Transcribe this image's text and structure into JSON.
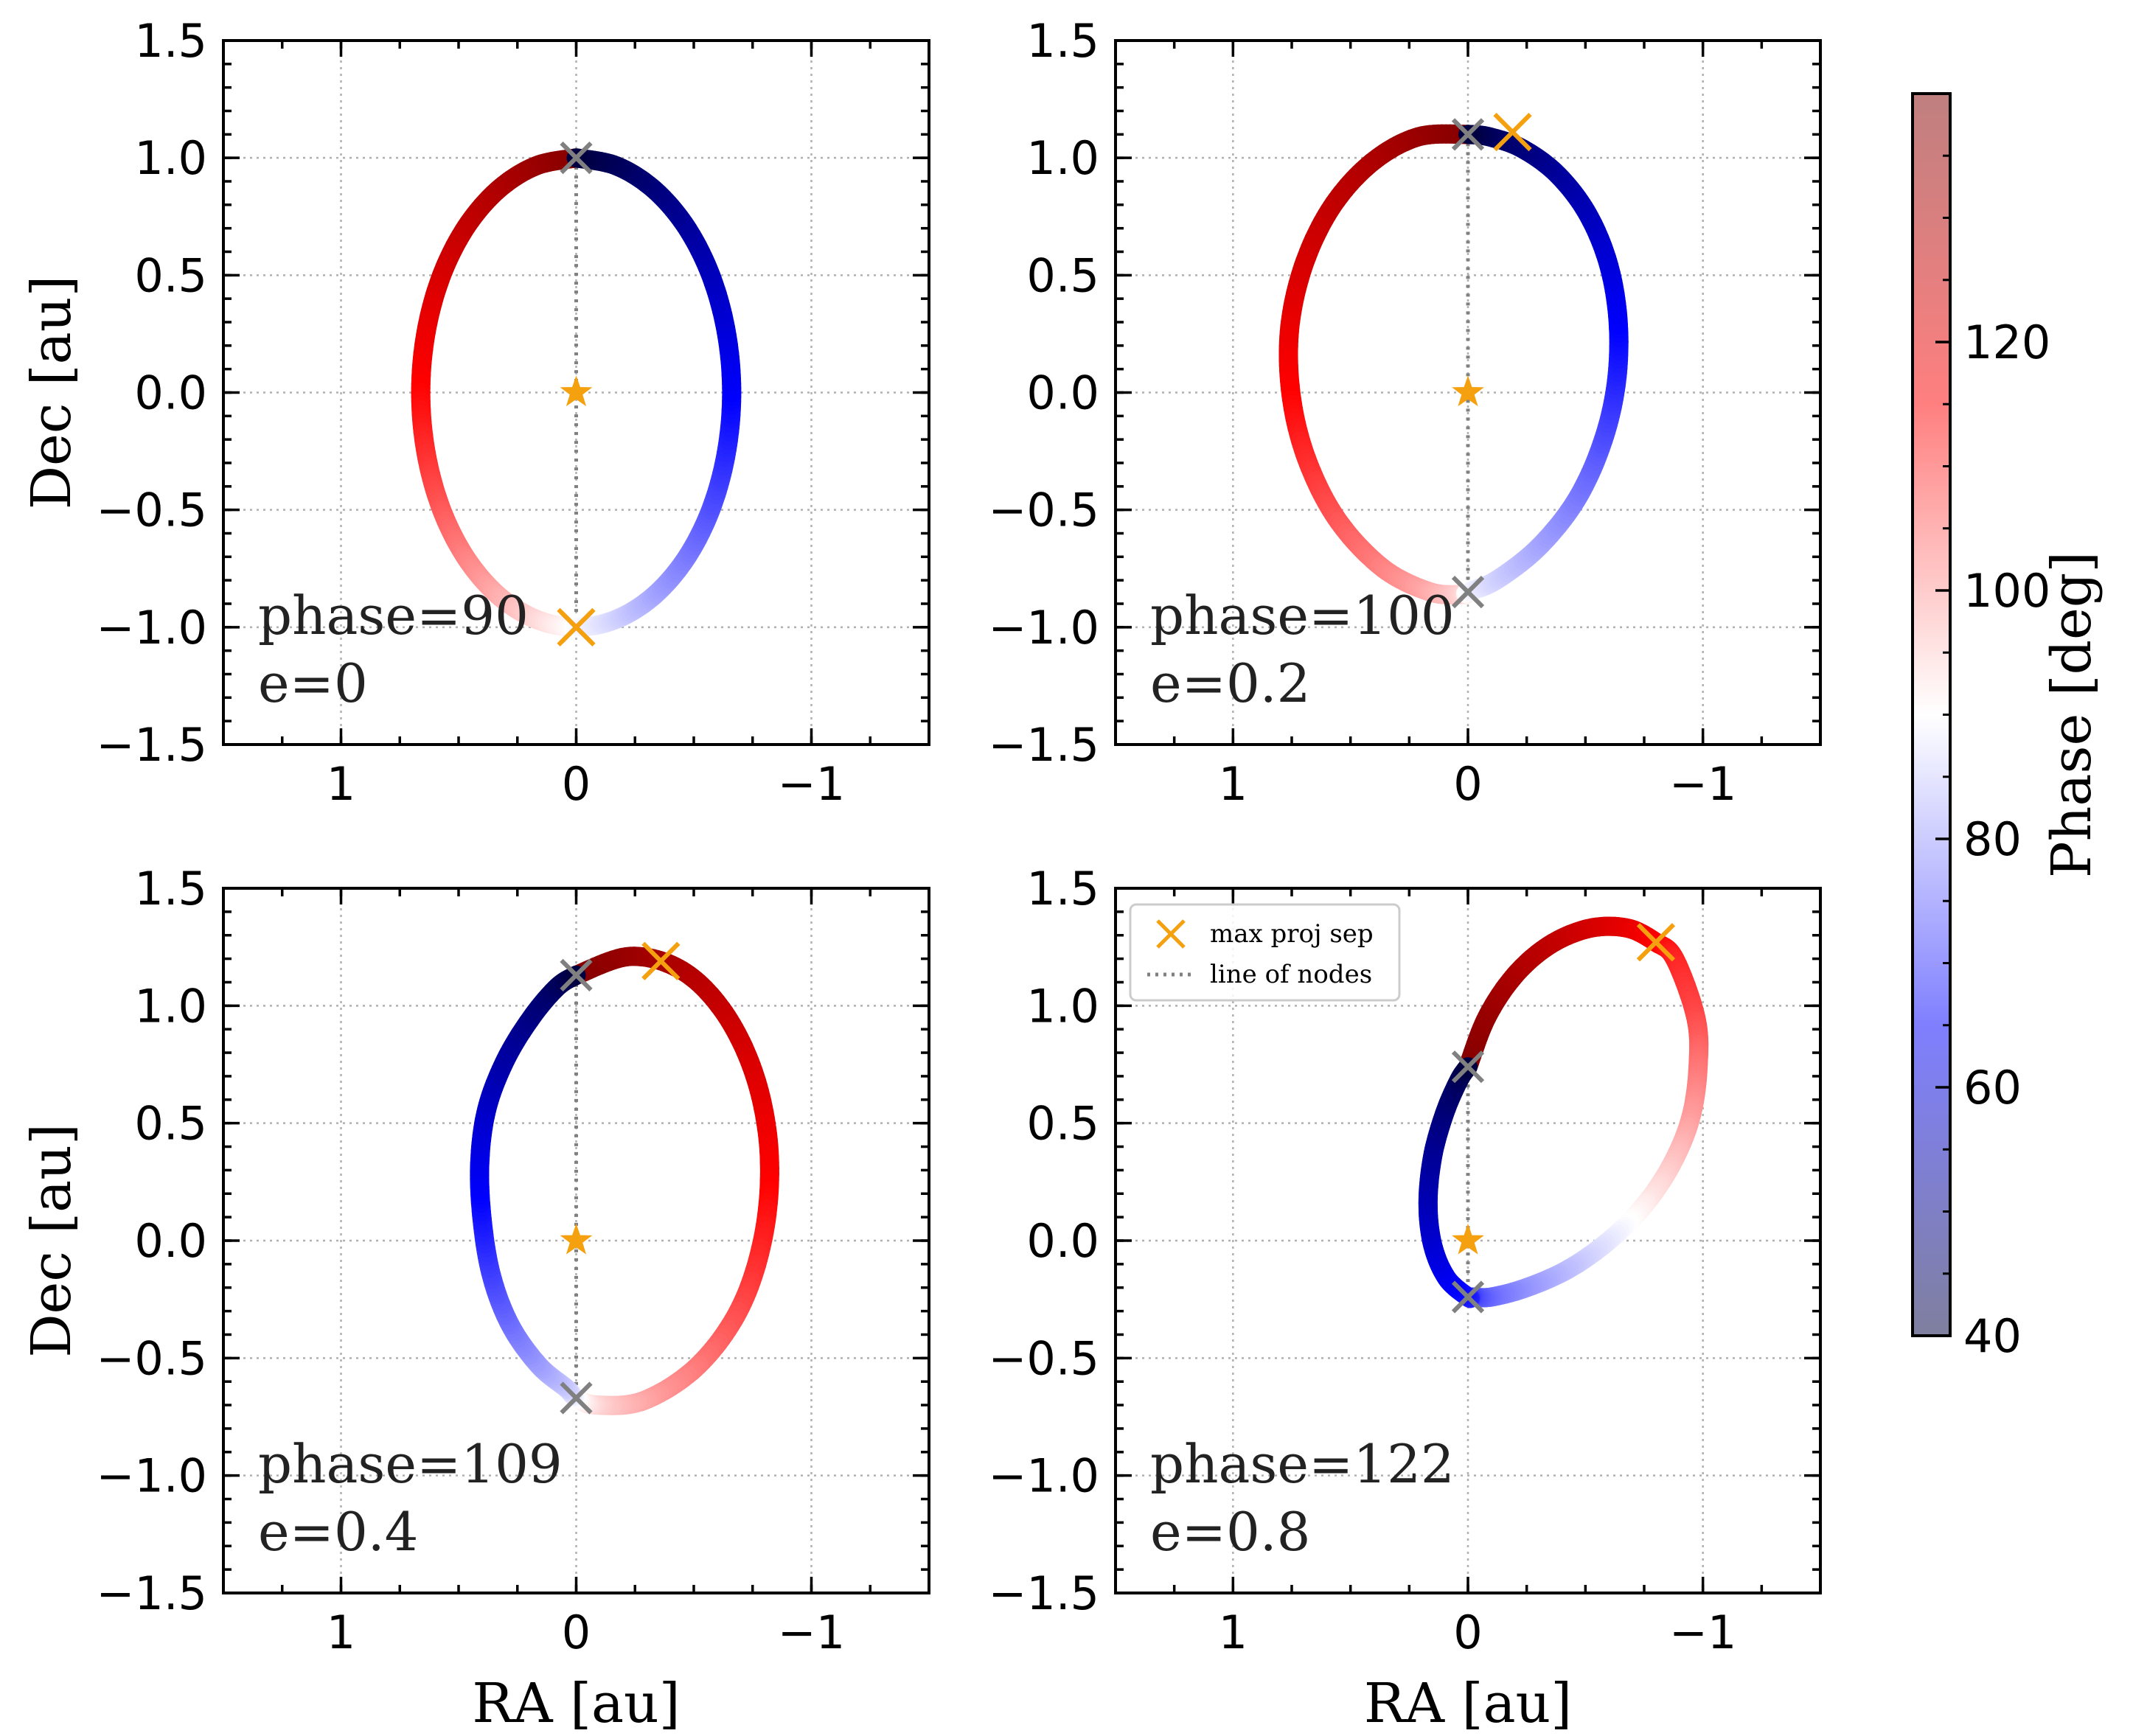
{
  "chart_data": [
    {
      "type": "line",
      "panel": "top-left",
      "annotation": [
        "phase=90",
        "e=0"
      ],
      "e": 0,
      "phase": 90,
      "xlabel": "",
      "ylabel": "Dec [au]",
      "xlim": [
        1.5,
        -1.5
      ],
      "ylim": [
        -1.5,
        1.5
      ],
      "xticks": [
        1,
        0,
        -1
      ],
      "xtick_labels": [
        "1",
        "0",
        "−1"
      ],
      "yticks": [
        -1.5,
        -1.0,
        -0.5,
        0.0,
        0.5,
        1.0,
        1.5
      ],
      "ytick_labels": [
        "−1.5",
        "−1.0",
        "−0.5",
        "0.0",
        "0.5",
        "1.0",
        "1.5"
      ],
      "grid": true,
      "orbit_curve": {
        "x": [
          0.0,
          0.171,
          0.33,
          0.467,
          0.572,
          0.638,
          0.661,
          0.638,
          0.572,
          0.467,
          0.33,
          0.171,
          0.0,
          -0.171,
          -0.33,
          -0.467,
          -0.572,
          -0.638,
          -0.661,
          -0.638,
          -0.572,
          -0.467,
          -0.33,
          -0.171,
          0.0
        ],
        "y": [
          1.0,
          0.966,
          0.866,
          0.707,
          0.5,
          0.259,
          0.0,
          -0.259,
          -0.5,
          -0.707,
          -0.866,
          -0.966,
          -1.0,
          -0.966,
          -0.866,
          -0.707,
          -0.5,
          -0.259,
          0.0,
          0.259,
          0.5,
          0.707,
          0.866,
          0.966,
          1.0
        ]
      },
      "ascending_node": {
        "x": 0.0,
        "y": 1.0
      },
      "descending_node": {
        "x": 0.0,
        "y": -1.0
      },
      "max_proj_sep": {
        "x": 0.0,
        "y": -1.0
      },
      "star": {
        "x": 0.0,
        "y": 0.0
      },
      "line_of_nodes": {
        "x": [
          0.0,
          0.0
        ],
        "y": [
          1.0,
          -1.0
        ]
      }
    },
    {
      "type": "line",
      "panel": "top-right",
      "annotation": [
        "phase=100",
        "e=0.2"
      ],
      "e": 0.2,
      "phase": 100,
      "xlabel": "",
      "ylabel": "",
      "xlim": [
        1.5,
        -1.5
      ],
      "ylim": [
        -1.5,
        1.5
      ],
      "xticks": [
        1,
        0,
        -1
      ],
      "xtick_labels": [
        "1",
        "0",
        "−1"
      ],
      "yticks": [
        -1.5,
        -1.0,
        -0.5,
        0.0,
        0.5,
        1.0,
        1.5
      ],
      "ytick_labels": [
        "−1.5",
        "−1.0",
        "−0.5",
        "0.0",
        "0.5",
        "1.0",
        "1.5"
      ],
      "grid": true,
      "orbit_curve": {
        "x": [
          0.0,
          0.211,
          0.41,
          0.58,
          0.7,
          0.76,
          0.75,
          0.68,
          0.55,
          0.36,
          0.16,
          0.02,
          0.0,
          -0.12,
          -0.3,
          -0.46,
          -0.57,
          -0.63,
          -0.64,
          -0.6,
          -0.51,
          -0.38,
          -0.23,
          -0.09,
          0.0
        ],
        "y": [
          1.1,
          1.09,
          0.98,
          0.79,
          0.54,
          0.26,
          -0.03,
          -0.3,
          -0.55,
          -0.75,
          -0.85,
          -0.86,
          -0.85,
          -0.8,
          -0.66,
          -0.46,
          -0.22,
          0.03,
          0.29,
          0.54,
          0.76,
          0.93,
          1.04,
          1.09,
          1.1
        ]
      },
      "ascending_node": {
        "x": 0.0,
        "y": 1.1
      },
      "descending_node": {
        "x": 0.0,
        "y": -0.85
      },
      "max_proj_sep": {
        "x": -0.19,
        "y": 1.11
      },
      "star": {
        "x": 0.0,
        "y": 0.0
      },
      "line_of_nodes": {
        "x": [
          0.0,
          0.0
        ],
        "y": [
          1.1,
          -0.85
        ]
      }
    },
    {
      "type": "line",
      "panel": "bottom-left",
      "annotation": [
        "phase=109",
        "e=0.4"
      ],
      "e": 0.4,
      "phase": 109,
      "xlabel": "RA [au]",
      "ylabel": "Dec [au]",
      "xlim": [
        1.5,
        -1.5
      ],
      "ylim": [
        -1.5,
        1.5
      ],
      "xticks": [
        1,
        0,
        -1
      ],
      "xtick_labels": [
        "1",
        "0",
        "−1"
      ],
      "yticks": [
        -1.5,
        -1.0,
        -0.5,
        0.0,
        0.5,
        1.0,
        1.5
      ],
      "ytick_labels": [
        "−1.5",
        "−1.0",
        "−0.5",
        "0.0",
        "0.5",
        "1.0",
        "1.5"
      ],
      "grid": true,
      "orbit_curve": {
        "x": [
          0.0,
          -0.23,
          -0.45,
          -0.63,
          -0.76,
          -0.82,
          -0.8,
          -0.7,
          -0.52,
          -0.29,
          -0.09,
          0.0,
          0.04,
          0.16,
          0.28,
          0.36,
          0.4,
          0.41,
          0.38,
          0.3,
          0.19,
          0.08,
          0.0
        ],
        "y": [
          1.13,
          1.21,
          1.15,
          0.97,
          0.7,
          0.38,
          0.04,
          -0.28,
          -0.53,
          -0.68,
          -0.7,
          -0.67,
          -0.63,
          -0.53,
          -0.36,
          -0.15,
          0.09,
          0.33,
          0.56,
          0.77,
          0.95,
          1.08,
          1.13
        ]
      },
      "ascending_node": {
        "x": 0.0,
        "y": 1.13
      },
      "descending_node": {
        "x": 0.0,
        "y": -0.67
      },
      "max_proj_sep": {
        "x": -0.36,
        "y": 1.19
      },
      "star": {
        "x": 0.0,
        "y": 0.0
      },
      "line_of_nodes": {
        "x": [
          0.0,
          0.0
        ],
        "y": [
          1.13,
          -0.67
        ]
      }
    },
    {
      "type": "line",
      "panel": "bottom-right",
      "annotation": [
        "phase=122",
        "e=0.8"
      ],
      "e": 0.8,
      "phase": 122,
      "xlabel": "RA [au]",
      "ylabel": "",
      "xlim": [
        1.5,
        -1.5
      ],
      "ylim": [
        -1.5,
        1.5
      ],
      "xticks": [
        1,
        0,
        -1
      ],
      "xtick_labels": [
        "1",
        "0",
        "−1"
      ],
      "yticks": [
        -1.5,
        -1.0,
        -0.5,
        0.0,
        0.5,
        1.0,
        1.5
      ],
      "ytick_labels": [
        "−1.5",
        "−1.0",
        "−0.5",
        "0.0",
        "0.5",
        "1.0",
        "1.5"
      ],
      "grid": true,
      "orbit_curve": {
        "x": [
          0.0,
          -0.08,
          -0.2,
          -0.35,
          -0.52,
          -0.68,
          -0.8,
          -0.88,
          -0.97,
          -0.98,
          -0.95,
          -0.87,
          -0.75,
          -0.6,
          -0.43,
          -0.25,
          -0.1,
          -0.02,
          0.0,
          0.09,
          0.15,
          0.17,
          0.15,
          0.1,
          0.04,
          0.0
        ],
        "y": [
          0.74,
          0.95,
          1.13,
          1.26,
          1.33,
          1.33,
          1.27,
          1.2,
          0.95,
          0.75,
          0.53,
          0.33,
          0.15,
          0.0,
          -0.12,
          -0.2,
          -0.24,
          -0.24,
          -0.24,
          -0.16,
          -0.02,
          0.16,
          0.36,
          0.54,
          0.68,
          0.74
        ]
      },
      "ascending_node": {
        "x": 0.0,
        "y": 0.74
      },
      "descending_node": {
        "x": 0.0,
        "y": -0.24
      },
      "max_proj_sep": {
        "x": -0.8,
        "y": 1.27
      },
      "star": {
        "x": 0.0,
        "y": 0.0
      },
      "line_of_nodes": {
        "x": [
          0.0,
          0.0
        ],
        "y": [
          0.74,
          -0.24
        ]
      },
      "legend": {
        "placement": "top-left",
        "entries": [
          {
            "label": "max proj sep",
            "marker": "x",
            "color": "#f5a00f"
          },
          {
            "label": "line of nodes",
            "linestyle": "dotted",
            "color": "#808080"
          }
        ]
      }
    }
  ],
  "colorbar": {
    "label": "Phase [deg]",
    "range": [
      40,
      140
    ],
    "ticks": [
      40,
      60,
      80,
      100,
      120
    ],
    "colormap": [
      "#000040",
      "#0000ff",
      "#ffffff",
      "#ff0000",
      "#800000"
    ],
    "alpha": 0.5
  },
  "colors": {
    "node_marker": "#808080",
    "max_sep_marker": "#f5a00f",
    "star": "#f5a00f",
    "grid": "#b0b0b0",
    "orbit_dark_blue": "#000040",
    "orbit_blue": "#0000ff",
    "orbit_white": "#ffffff",
    "orbit_red": "#ff0000",
    "orbit_dark_red": "#800000"
  }
}
